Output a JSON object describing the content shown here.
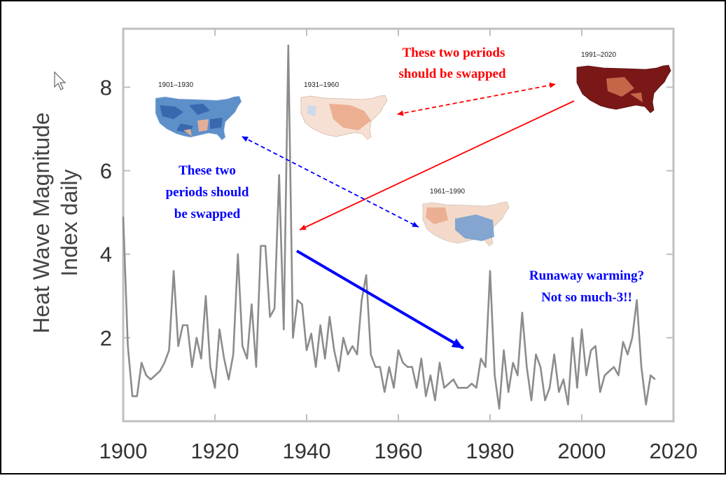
{
  "chart_data": {
    "type": "line",
    "ylabel_line1": "Heat Wave Magnitude",
    "ylabel_line2": "Index daily",
    "xlim": [
      1900,
      2020
    ],
    "ylim": [
      0,
      9.4
    ],
    "x_ticks": [
      1900,
      1920,
      1940,
      1960,
      1980,
      2000,
      2020
    ],
    "y_ticks": [
      2,
      4,
      6,
      8
    ],
    "grid": false,
    "colors": {
      "line": "#8c8c8c",
      "frame": "#bfbfbf",
      "red": "#ff0000",
      "blue": "#0000ff"
    },
    "series": [
      {
        "x": [
          1900,
          1901,
          1902,
          1903,
          1904,
          1905,
          1906,
          1907,
          1908,
          1909,
          1910,
          1911,
          1912,
          1913,
          1914,
          1915,
          1916,
          1917,
          1918,
          1919,
          1920,
          1921,
          1922,
          1923,
          1924,
          1925,
          1926,
          1927,
          1928,
          1929,
          1930,
          1931,
          1932,
          1933,
          1934,
          1935,
          1936,
          1937,
          1938,
          1939,
          1940,
          1941,
          1942,
          1943,
          1944,
          1945,
          1946,
          1947,
          1948,
          1949,
          1950,
          1951,
          1952,
          1953,
          1954,
          1955,
          1956,
          1957,
          1958,
          1959,
          1960,
          1961,
          1962,
          1963,
          1964,
          1965,
          1966,
          1967,
          1968,
          1969,
          1970,
          1971,
          1972,
          1973,
          1974,
          1975,
          1976,
          1977,
          1978,
          1979,
          1980,
          1981,
          1982,
          1983,
          1984,
          1985,
          1986,
          1987,
          1988,
          1989,
          1990,
          1991,
          1992,
          1993,
          1994,
          1995,
          1996,
          1997,
          1998,
          1999,
          2000,
          2001,
          2002,
          2003,
          2004,
          2005,
          2006,
          2007,
          2008,
          2009,
          2010,
          2011,
          2012,
          2013,
          2014,
          2015,
          2016
        ],
        "y": [
          4.9,
          1.8,
          0.6,
          0.6,
          1.4,
          1.1,
          1.0,
          1.1,
          1.2,
          1.4,
          1.7,
          3.6,
          1.8,
          2.3,
          2.3,
          1.3,
          2.0,
          1.5,
          3.0,
          1.3,
          0.8,
          2.2,
          1.5,
          1.0,
          1.6,
          4.0,
          1.8,
          1.5,
          2.8,
          1.3,
          4.2,
          4.2,
          2.5,
          2.7,
          5.9,
          2.2,
          9.0,
          2.0,
          2.9,
          2.8,
          1.7,
          2.1,
          1.3,
          2.3,
          1.5,
          2.5,
          1.7,
          1.2,
          2.0,
          1.6,
          1.8,
          1.6,
          2.9,
          3.5,
          1.6,
          1.3,
          1.3,
          0.7,
          1.3,
          0.8,
          1.7,
          1.4,
          1.3,
          1.3,
          0.8,
          1.5,
          0.6,
          1.1,
          0.5,
          1.4,
          0.8,
          0.9,
          1.0,
          0.8,
          0.8,
          0.8,
          0.9,
          0.8,
          1.5,
          1.3,
          3.6,
          1.1,
          0.3,
          1.7,
          0.7,
          1.4,
          1.1,
          2.6,
          1.3,
          0.5,
          1.6,
          1.3,
          0.5,
          0.8,
          1.6,
          0.7,
          1.0,
          0.4,
          2.0,
          0.8,
          2.2,
          1.1,
          1.7,
          1.8,
          0.7,
          1.1,
          1.2,
          1.3,
          1.1,
          1.9,
          1.6,
          2.0,
          2.9,
          1.3,
          0.4,
          1.1,
          1.0
        ]
      }
    ],
    "annotations": {
      "red": {
        "line1": "These two periods",
        "line2": "should be swapped"
      },
      "blue": {
        "line1": "These two",
        "line2": "periods should",
        "line3": "be swapped"
      },
      "runaway": {
        "line1": "Runaway warming?",
        "line2": "Not so much-3!!"
      }
    },
    "map_insets": [
      {
        "label": "1901–1930",
        "style": "blue"
      },
      {
        "label": "1931–1960",
        "style": "light"
      },
      {
        "label": "1961–1990",
        "style": "mixed"
      },
      {
        "label": "1991–2020",
        "style": "dark"
      }
    ]
  }
}
